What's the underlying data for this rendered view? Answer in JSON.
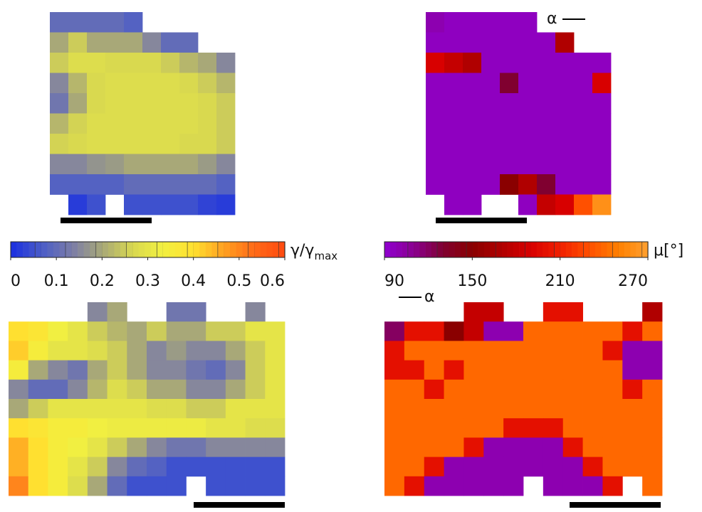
{
  "chart_data": [
    {
      "type": "heatmap",
      "colorbar": {
        "label": "γ/γ",
        "label_subscript": "max",
        "lim": [
          0,
          0.6
        ],
        "ticks": [
          0,
          0.1,
          0.2,
          0.3,
          0.4,
          0.5,
          0.6
        ],
        "colors": [
          "#1a2ee0",
          "#4a5cc8",
          "#7a7ca8",
          "#a8a878",
          "#d8d850",
          "#f2f040",
          "#ffe030",
          "#ffa020",
          "#ff6a18",
          "#ff4a10"
        ]
      },
      "values": [
        [
          0.1,
          0.1,
          0.1,
          0.1,
          0.08,
          null,
          null,
          null,
          null,
          null
        ],
        [
          0.2,
          0.25,
          0.2,
          0.2,
          0.2,
          0.15,
          0.1,
          0.1,
          null,
          null
        ],
        [
          0.25,
          0.28,
          0.28,
          0.27,
          0.27,
          0.27,
          0.25,
          0.22,
          0.2,
          0.15
        ],
        [
          0.15,
          0.22,
          0.27,
          0.28,
          0.28,
          0.28,
          0.28,
          0.27,
          0.25,
          0.22
        ],
        [
          0.12,
          0.2,
          0.27,
          0.28,
          0.28,
          0.28,
          0.28,
          0.28,
          0.27,
          0.25
        ],
        [
          0.22,
          0.26,
          0.28,
          0.28,
          0.28,
          0.28,
          0.28,
          0.28,
          0.27,
          0.25
        ],
        [
          0.26,
          0.27,
          0.28,
          0.28,
          0.28,
          0.28,
          0.28,
          0.27,
          0.27,
          0.25
        ],
        [
          0.15,
          0.15,
          0.17,
          0.18,
          0.2,
          0.2,
          0.2,
          0.2,
          0.18,
          0.15
        ],
        [
          0.08,
          0.08,
          0.08,
          0.08,
          0.1,
          0.1,
          0.1,
          0.1,
          0.1,
          0.08
        ],
        [
          null,
          0.02,
          0.05,
          null,
          0.05,
          0.05,
          0.05,
          0.05,
          0.03,
          0.02
        ]
      ]
    },
    {
      "type": "heatmap",
      "annotation": "α",
      "colorbar": {
        "label": "μ[°]",
        "lim": [
          90,
          270
        ],
        "ticks": [
          90,
          150,
          210,
          270
        ],
        "colors": [
          "#9000d0",
          "#8a0090",
          "#800030",
          "#8a0000",
          "#b00000",
          "#d80000",
          "#f02000",
          "#ff5000",
          "#ff8000",
          "#ffa030"
        ]
      },
      "values": [
        [
          100,
          95,
          95,
          95,
          95,
          95,
          null,
          null,
          null,
          null
        ],
        [
          95,
          95,
          95,
          95,
          95,
          95,
          95,
          170,
          null,
          null
        ],
        [
          190,
          180,
          170,
          95,
          95,
          95,
          95,
          95,
          95,
          95
        ],
        [
          95,
          95,
          95,
          95,
          130,
          95,
          95,
          95,
          95,
          190
        ],
        [
          95,
          95,
          95,
          95,
          95,
          95,
          95,
          95,
          95,
          95
        ],
        [
          95,
          95,
          95,
          95,
          95,
          95,
          95,
          95,
          95,
          95
        ],
        [
          95,
          95,
          95,
          95,
          95,
          95,
          95,
          95,
          95,
          95
        ],
        [
          95,
          95,
          95,
          95,
          95,
          95,
          95,
          95,
          95,
          95
        ],
        [
          95,
          95,
          95,
          95,
          150,
          170,
          130,
          95,
          95,
          95
        ],
        [
          null,
          95,
          95,
          null,
          null,
          95,
          180,
          190,
          230,
          260
        ]
      ]
    },
    {
      "type": "heatmap",
      "values": [
        [
          null,
          null,
          null,
          null,
          0.15,
          0.2,
          null,
          null,
          0.12,
          0.12,
          null,
          null,
          0.15,
          null
        ],
        [
          0.4,
          0.38,
          0.33,
          0.3,
          0.25,
          0.22,
          0.2,
          0.25,
          0.2,
          0.2,
          0.25,
          0.25,
          0.3,
          0.3
        ],
        [
          0.42,
          0.35,
          0.3,
          0.3,
          0.28,
          0.25,
          0.2,
          0.15,
          0.18,
          0.15,
          0.15,
          0.2,
          0.25,
          0.3
        ],
        [
          0.35,
          0.2,
          0.15,
          0.12,
          0.2,
          0.25,
          0.2,
          0.15,
          0.15,
          0.12,
          0.1,
          0.15,
          0.25,
          0.3
        ],
        [
          0.15,
          0.1,
          0.1,
          0.15,
          0.22,
          0.28,
          0.25,
          0.2,
          0.2,
          0.15,
          0.15,
          0.2,
          0.25,
          0.3
        ],
        [
          0.2,
          0.25,
          0.3,
          0.3,
          0.3,
          0.3,
          0.3,
          0.28,
          0.28,
          0.25,
          0.25,
          0.3,
          0.3,
          0.3
        ],
        [
          0.4,
          0.38,
          0.35,
          0.35,
          0.33,
          0.32,
          0.32,
          0.32,
          0.32,
          0.32,
          0.3,
          0.3,
          0.28,
          0.28
        ],
        [
          0.45,
          0.4,
          0.35,
          0.33,
          0.3,
          0.25,
          0.2,
          0.15,
          0.12,
          0.12,
          0.15,
          0.15,
          0.15,
          0.15
        ],
        [
          0.45,
          0.4,
          0.35,
          0.3,
          0.25,
          0.15,
          0.1,
          0.08,
          0.05,
          0.05,
          0.05,
          0.05,
          0.05,
          0.05
        ],
        [
          0.5,
          0.4,
          0.35,
          0.28,
          0.2,
          0.1,
          0.05,
          0.05,
          0.05,
          null,
          0.05,
          0.05,
          0.05,
          0.05
        ]
      ]
    },
    {
      "type": "heatmap",
      "annotation": "α",
      "values": [
        [
          null,
          null,
          null,
          null,
          180,
          180,
          null,
          null,
          200,
          200,
          null,
          null,
          null,
          170
        ],
        [
          120,
          200,
          200,
          150,
          180,
          100,
          100,
          240,
          240,
          240,
          240,
          240,
          200,
          240
        ],
        [
          200,
          240,
          240,
          240,
          240,
          240,
          240,
          240,
          240,
          240,
          240,
          200,
          100,
          100
        ],
        [
          200,
          200,
          240,
          200,
          240,
          240,
          240,
          240,
          240,
          240,
          240,
          240,
          100,
          100
        ],
        [
          240,
          240,
          200,
          240,
          240,
          240,
          240,
          240,
          240,
          240,
          240,
          240,
          200,
          240
        ],
        [
          240,
          240,
          240,
          240,
          240,
          240,
          240,
          240,
          240,
          240,
          240,
          240,
          240,
          240
        ],
        [
          240,
          240,
          240,
          240,
          240,
          240,
          200,
          200,
          200,
          240,
          240,
          240,
          240,
          240
        ],
        [
          240,
          240,
          240,
          240,
          200,
          100,
          100,
          100,
          100,
          200,
          240,
          240,
          240,
          240
        ],
        [
          240,
          240,
          200,
          100,
          100,
          100,
          100,
          100,
          100,
          100,
          200,
          240,
          240,
          240
        ],
        [
          240,
          200,
          100,
          100,
          100,
          100,
          100,
          null,
          100,
          100,
          100,
          200,
          null,
          240
        ]
      ]
    }
  ]
}
